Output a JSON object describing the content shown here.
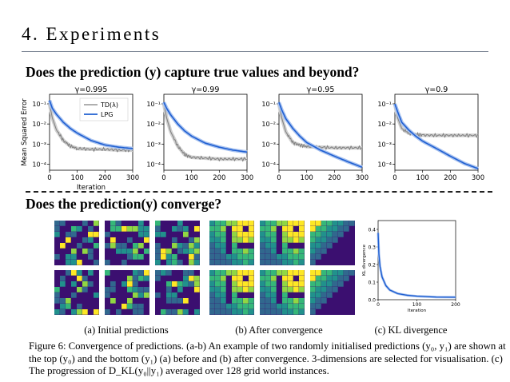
{
  "slide": {
    "title": "4. Experiments",
    "question1": "Does the prediction (y) capture true values and beyond?",
    "question2": "Does the prediction(y) converge?"
  },
  "chart_data": [
    {
      "type": "line",
      "title": "γ=0.995",
      "ylabel": "Mean Squared Error",
      "xlabel": "Iteration",
      "yscale": "log",
      "xlim": [
        0,
        300
      ],
      "ylim": [
        5e-05,
        0.3
      ],
      "xticks": [
        "0",
        "100",
        "200",
        "300"
      ],
      "yticks": [
        "10⁻¹",
        "10⁻²",
        "10⁻³",
        "10⁻⁴"
      ],
      "legend": "top-right",
      "series": [
        {
          "name": "TD(λ)",
          "color": "#7f7f7f",
          "x": [
            0,
            10,
            25,
            50,
            75,
            100,
            150,
            200,
            250,
            300
          ],
          "y": [
            0.1,
            0.02,
            0.005,
            0.0015,
            0.0008,
            0.0006,
            0.00055,
            0.00055,
            0.0005,
            0.0005
          ]
        },
        {
          "name": "LPG",
          "color": "#1f5fd1",
          "x": [
            0,
            10,
            25,
            50,
            75,
            100,
            150,
            200,
            250,
            300
          ],
          "y": [
            0.15,
            0.06,
            0.03,
            0.012,
            0.006,
            0.0035,
            0.0015,
            0.0009,
            0.0007,
            0.0006
          ]
        }
      ]
    },
    {
      "type": "line",
      "title": "γ=0.99",
      "xlabel": "",
      "yscale": "log",
      "xlim": [
        0,
        300
      ],
      "xticks": [
        "0",
        "100",
        "200",
        "300"
      ],
      "yticks": [
        "10⁻¹",
        "10⁻²",
        "10⁻³",
        "10⁻⁴"
      ],
      "series": [
        {
          "x": [
            0,
            10,
            25,
            50,
            75,
            100,
            150,
            200,
            250,
            300
          ],
          "y": [
            0.1,
            0.02,
            0.004,
            0.0008,
            0.0003,
            0.00022,
            0.0002,
            0.00018,
            0.00018,
            0.00018
          ]
        },
        {
          "x": [
            0,
            10,
            25,
            50,
            75,
            100,
            150,
            200,
            250,
            300
          ],
          "y": [
            0.12,
            0.06,
            0.028,
            0.01,
            0.0045,
            0.0025,
            0.0011,
            0.0007,
            0.0005,
            0.0004
          ]
        }
      ]
    },
    {
      "type": "line",
      "title": "γ=0.95",
      "xlabel": "",
      "yscale": "log",
      "xlim": [
        0,
        300
      ],
      "xticks": [
        "0",
        "100",
        "200",
        "300"
      ],
      "yticks": [
        "10⁻¹",
        "10⁻²",
        "10⁻³",
        "10⁻⁴"
      ],
      "series": [
        {
          "x": [
            0,
            10,
            25,
            50,
            75,
            100,
            150,
            200,
            250,
            300
          ],
          "y": [
            0.1,
            0.02,
            0.004,
            0.0012,
            0.0009,
            0.00075,
            0.0007,
            0.00065,
            0.00065,
            0.00065
          ]
        },
        {
          "x": [
            0,
            10,
            25,
            50,
            75,
            100,
            150,
            200,
            250,
            300
          ],
          "y": [
            0.12,
            0.05,
            0.018,
            0.006,
            0.0025,
            0.0012,
            0.0005,
            0.00025,
            0.00013,
            7e-05
          ]
        }
      ]
    },
    {
      "type": "line",
      "title": "γ=0.9",
      "xlabel": "",
      "yscale": "log",
      "xlim": [
        0,
        300
      ],
      "xticks": [
        "0",
        "100",
        "200",
        "300"
      ],
      "yticks": [
        "10⁻¹",
        "10⁻²",
        "10⁻³",
        "10⁻⁴"
      ],
      "series": [
        {
          "x": [
            0,
            10,
            25,
            50,
            75,
            100,
            150,
            200,
            250,
            300
          ],
          "y": [
            0.1,
            0.02,
            0.006,
            0.0035,
            0.003,
            0.0028,
            0.0027,
            0.0027,
            0.0027,
            0.0027
          ]
        },
        {
          "x": [
            0,
            10,
            25,
            50,
            75,
            100,
            150,
            200,
            250,
            300
          ],
          "y": [
            0.1,
            0.04,
            0.012,
            0.005,
            0.0025,
            0.0014,
            0.0006,
            0.00025,
            0.00011,
            6e-05
          ]
        }
      ]
    },
    {
      "type": "line",
      "title": "",
      "xlabel": "Iteration",
      "ylabel": "KL divergence",
      "xlim": [
        0,
        200
      ],
      "ylim": [
        0,
        0.45
      ],
      "xticks": [
        "0",
        "100",
        "200"
      ],
      "yticks": [
        "0.0",
        "0.1",
        "0.2",
        "0.3",
        "0.4"
      ],
      "series": [
        {
          "color": "#1f5fd1",
          "x": [
            0,
            2,
            5,
            10,
            20,
            30,
            50,
            75,
            100,
            150,
            200
          ],
          "y": [
            0.38,
            0.26,
            0.19,
            0.13,
            0.08,
            0.055,
            0.035,
            0.025,
            0.02,
            0.015,
            0.014
          ]
        }
      ]
    }
  ],
  "panel_labels": {
    "a": "(a) Initial predictions",
    "b": "(b) After convergence",
    "c": "(c) KL divergence"
  },
  "caption": {
    "label": "Figure 6:",
    "text": "Convergence of predictions. (a-b) An example of two randomly initialised predictions (y₀, y₁) are shown at the top (y₀) and the bottom (y₁) (a) before and (b) after convergence. 3-dimensions are selected for visualisation. (c) The progression of D_KL(y₀||y₁) averaged over 128 grid world instances."
  },
  "colors": {
    "td": "#7f7f7f",
    "lpg": "#1f5fd1",
    "heatmap": [
      "#3b0f70",
      "#31688e",
      "#21918c",
      "#35b779",
      "#90d743",
      "#fde725"
    ]
  }
}
